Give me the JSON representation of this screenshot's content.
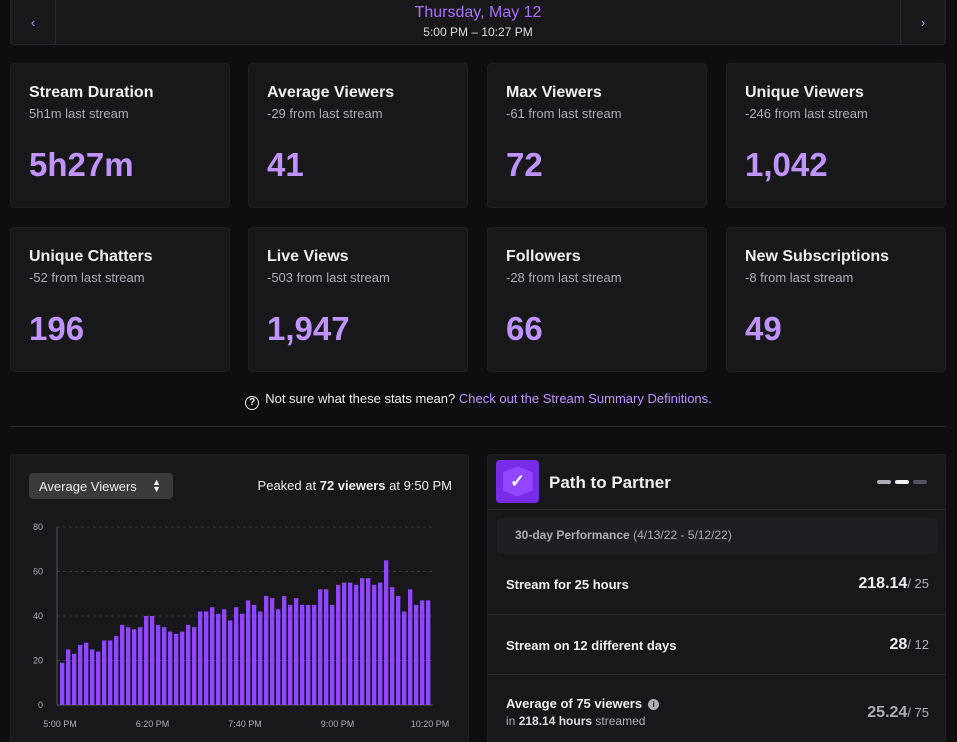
{
  "date_nav": {
    "prev_icon": "chevron-left-icon",
    "next_icon": "chevron-right-icon",
    "prev_glyph": "‹",
    "next_glyph": "›",
    "date": "Thursday, May 12",
    "time_range": "5:00 PM – 10:27 PM"
  },
  "stats": [
    {
      "title": "Stream Duration",
      "delta": "5h1m last stream",
      "value": "5h27m"
    },
    {
      "title": "Average Viewers",
      "delta": "-29 from last stream",
      "value": "41"
    },
    {
      "title": "Max Viewers",
      "delta": "-61 from last stream",
      "value": "72"
    },
    {
      "title": "Unique Viewers",
      "delta": "-246 from last stream",
      "value": "1,042"
    },
    {
      "title": "Unique Chatters",
      "delta": "-52 from last stream",
      "value": "196"
    },
    {
      "title": "Live Views",
      "delta": "-503 from last stream",
      "value": "1,947"
    },
    {
      "title": "Followers",
      "delta": "-28 from last stream",
      "value": "66"
    },
    {
      "title": "New Subscriptions",
      "delta": "-8 from last stream",
      "value": "49"
    }
  ],
  "help": {
    "text": "Not sure what these stats mean?",
    "link": "Check out the Stream Summary Definitions."
  },
  "chart_panel": {
    "metric_select": "Average Viewers",
    "peak_prefix": "Peaked at",
    "peak_value": "72 viewers",
    "peak_suffix": "at 9:50 PM"
  },
  "chart_data": {
    "type": "bar",
    "ylim": [
      0,
      80
    ],
    "yticks": [
      "0",
      "20",
      "40",
      "60",
      "80"
    ],
    "xtick_labels": [
      "5:00 PM",
      "6:20 PM",
      "7:40 PM",
      "9:00 PM",
      "10:20 PM"
    ],
    "bar_color": "#9147ff",
    "values": [
      19,
      25,
      23,
      27,
      28,
      25,
      24,
      29,
      29,
      31,
      36,
      35,
      34,
      35,
      40,
      40,
      36,
      35,
      33,
      32,
      33,
      36,
      35,
      42,
      42,
      44,
      41,
      43,
      38,
      44,
      41,
      47,
      45,
      42,
      49,
      48,
      43,
      49,
      45,
      48,
      45,
      45,
      45,
      52,
      52,
      45,
      54,
      55,
      55,
      54,
      57,
      57,
      54,
      55,
      65,
      53,
      49,
      42,
      52,
      45,
      47,
      47
    ],
    "xlabel": "",
    "ylabel": "",
    "grid": true
  },
  "path_to_partner": {
    "title": "Path to Partner",
    "logo_icon": "partner-badge-icon",
    "period_label": "30-day Performance",
    "period_range": "(4/13/22 - 5/12/22)",
    "goals": [
      {
        "title": "Stream for 25 hours",
        "current": "218.14",
        "target": "/ 25",
        "sub_prefix": "",
        "sub_value": "",
        "sub_suffix": ""
      },
      {
        "title": "Stream on 12 different days",
        "current": "28",
        "target": "/ 12",
        "sub_prefix": "",
        "sub_value": "",
        "sub_suffix": ""
      },
      {
        "title": "Average of 75 viewers",
        "current": "25.24",
        "target": "/ 75",
        "sub_prefix": "in",
        "sub_value": "218.14 hours",
        "sub_suffix": "streamed"
      }
    ]
  }
}
